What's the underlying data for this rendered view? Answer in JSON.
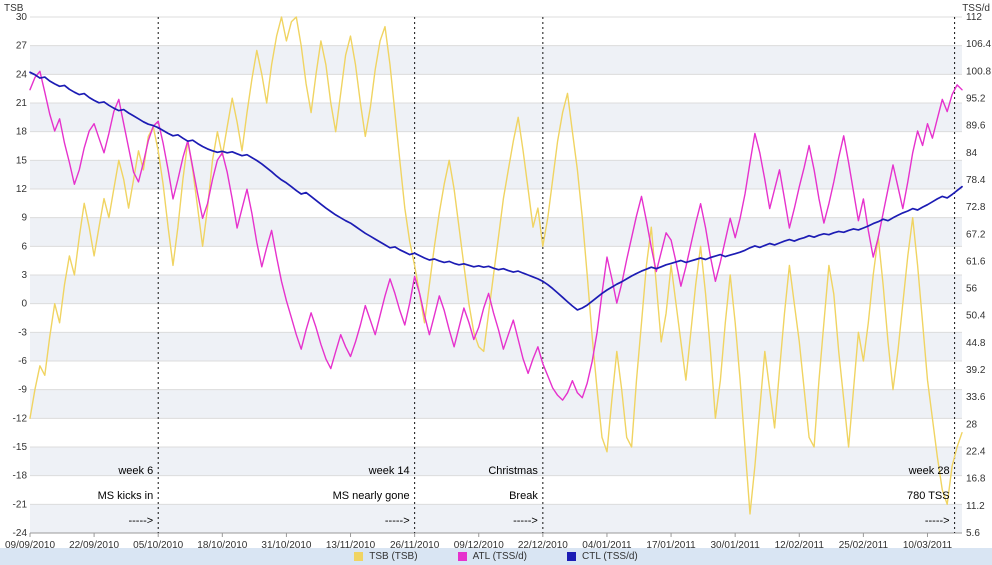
{
  "chart_data": {
    "type": "line",
    "title": "",
    "plot": {
      "band_color": "#eef1f6",
      "grid_color": "#dcdcdc",
      "axis_color": "#999999",
      "annotation_line_color": "#111111",
      "text_color": "#333333"
    },
    "left_axis": {
      "label": "TSB",
      "max": 30,
      "min": -24,
      "step": 3
    },
    "right_axis": {
      "label": "TSS/d",
      "max": 112,
      "min": 5.6,
      "step": 5.6
    },
    "x_axis": {
      "max_day": 189,
      "tick_days": [
        0,
        13,
        26,
        39,
        52,
        65,
        78,
        91,
        104,
        117,
        130,
        143,
        156,
        169,
        182
      ],
      "tick_labels": [
        "09/09/2010",
        "22/09/2010",
        "05/10/2010",
        "18/10/2010",
        "31/10/2010",
        "13/11/2010",
        "26/11/2010",
        "09/12/2010",
        "22/12/2010",
        "04/01/2011",
        "17/01/2011",
        "30/01/2011",
        "12/02/2011",
        "25/02/2011",
        "10/03/2011"
      ]
    },
    "annotations": [
      {
        "day": 26,
        "lines": [
          "week 6",
          "MS kicks in",
          "----->"
        ]
      },
      {
        "day": 78,
        "lines": [
          "week 14",
          "MS nearly gone",
          "----->"
        ]
      },
      {
        "day": 104,
        "lines": [
          "Christmas",
          "Break",
          "----->"
        ]
      },
      {
        "day": 187.5,
        "lines": [
          "week 28",
          "780 TSS",
          "----->"
        ]
      }
    ],
    "legend": {
      "background": "#d9e5f3"
    },
    "series": [
      {
        "id": "tsb",
        "name": "TSB (TSB)",
        "color": "#f0d462",
        "axis": "left",
        "width": 1.4,
        "values": [
          -12,
          -9,
          -6.5,
          -7.5,
          -3.5,
          0,
          -2,
          2,
          5,
          3,
          7,
          10.5,
          8,
          5,
          8,
          11,
          9,
          12,
          15,
          13,
          10,
          13,
          16,
          14,
          17.5,
          18.5,
          16,
          12.5,
          8,
          4,
          8,
          13,
          17,
          14,
          10,
          6,
          10,
          15,
          18,
          15.5,
          18.5,
          21.5,
          19,
          16,
          20,
          23.5,
          26.5,
          24,
          21,
          25,
          28,
          30,
          27.5,
          29.5,
          30,
          27,
          23,
          20,
          24,
          27.5,
          25,
          21,
          18,
          22,
          26,
          28,
          25,
          21,
          17.5,
          20.5,
          24.5,
          27.5,
          29,
          25,
          20,
          15,
          10,
          6.5,
          4,
          1,
          -2,
          2,
          6,
          9.5,
          12.5,
          15,
          12,
          8,
          4,
          0,
          -3,
          -4.5,
          -5,
          -1,
          3,
          7,
          11,
          14,
          17,
          19.5,
          16,
          12,
          8,
          10,
          6,
          9,
          13,
          17,
          20,
          22,
          18,
          14,
          9,
          3,
          -3.5,
          -9,
          -14,
          -15.5,
          -10,
          -5,
          -9,
          -14,
          -15,
          -8,
          -2,
          4,
          8,
          2,
          -4,
          -1,
          4,
          0,
          -4,
          -8,
          -3,
          2,
          6,
          1,
          -5,
          -12,
          -8,
          -2,
          3,
          -2,
          -8,
          -15,
          -22,
          -17,
          -11,
          -5,
          -9,
          -13,
          -7,
          -1,
          4,
          0,
          -4,
          -9,
          -14,
          -15,
          -8,
          -2,
          4,
          1,
          -5,
          -10,
          -15,
          -9,
          -3,
          -6,
          -2,
          3,
          7,
          2,
          -4,
          -9,
          -5,
          0,
          5,
          9,
          4,
          -2,
          -8,
          -12,
          -16,
          -19.5,
          -21,
          -17,
          -15,
          -13.5
        ]
      },
      {
        "id": "atl",
        "name": "ATL (TSS/d)",
        "color": "#e632cd",
        "axis": "right",
        "width": 1.4,
        "values": [
          97,
          99.5,
          100.8,
          96.5,
          92,
          88.5,
          91,
          86,
          82,
          77.5,
          80.5,
          85,
          88.5,
          90,
          87,
          84,
          88,
          92.5,
          95,
          90,
          85,
          80,
          78,
          82,
          86.5,
          89.5,
          90.5,
          86,
          80.5,
          74.5,
          78.5,
          83,
          86.5,
          81,
          75.5,
          70.5,
          73.5,
          78.5,
          82.5,
          84,
          80,
          74.5,
          68.5,
          72.5,
          76.5,
          71.5,
          65.5,
          60.5,
          64.5,
          68,
          62.5,
          57.5,
          53.5,
          50,
          46.5,
          43.5,
          47.5,
          51,
          48,
          44.5,
          41.5,
          39.5,
          43,
          46.5,
          44,
          42,
          45,
          48.5,
          52.5,
          49.5,
          46.5,
          50.5,
          54.5,
          58,
          55,
          51.5,
          48.5,
          53,
          58.5,
          55,
          50.5,
          46.5,
          50.5,
          54.5,
          51.5,
          47.5,
          44,
          48,
          52,
          49,
          45.5,
          48,
          52,
          55,
          51,
          47.5,
          43.5,
          46.5,
          49.5,
          45.5,
          41.5,
          38.5,
          41.5,
          44,
          40.5,
          38,
          35.5,
          34,
          33,
          34.5,
          37,
          34.5,
          33.5,
          36.5,
          41,
          47,
          55,
          62.5,
          58,
          53,
          57,
          62,
          66.5,
          71,
          75,
          70,
          64.5,
          59.5,
          63.5,
          67.5,
          66,
          61.5,
          56.5,
          60.5,
          65,
          69.5,
          73.5,
          68.5,
          62.5,
          57.5,
          61.5,
          66,
          70.5,
          66.5,
          70.5,
          75.5,
          82,
          88,
          84,
          78.5,
          72.5,
          76.5,
          80.5,
          74.5,
          68.5,
          72.5,
          77,
          81,
          85.5,
          80.5,
          74.5,
          69.5,
          73.5,
          78,
          83,
          87.5,
          82,
          76,
          70,
          74.5,
          68,
          62.5,
          66.5,
          71.5,
          76.5,
          81.5,
          77,
          72.5,
          78,
          84,
          88.5,
          85.5,
          90,
          87,
          91,
          95,
          92.5,
          96,
          98,
          97
        ]
      },
      {
        "id": "ctl",
        "name": "CTL (TSS/d)",
        "color": "#1c1cb4",
        "axis": "right",
        "width": 1.7,
        "values": [
          100.6,
          100.1,
          99.4,
          99.6,
          98.8,
          98.2,
          97.7,
          97.9,
          97.1,
          96.5,
          96.0,
          96.2,
          95.4,
          94.8,
          94.3,
          94.5,
          93.8,
          93.2,
          92.7,
          92.9,
          92.2,
          91.6,
          91.0,
          90.4,
          89.9,
          89.6,
          89.2,
          88.6,
          88.0,
          87.5,
          87.7,
          87.0,
          86.4,
          86.6,
          85.9,
          85.3,
          84.8,
          84.4,
          84.1,
          84.3,
          84.0,
          84.2,
          83.8,
          83.4,
          83.6,
          83.0,
          82.4,
          81.7,
          80.9,
          80.1,
          79.2,
          78.4,
          77.8,
          77.0,
          76.2,
          75.5,
          75.8,
          75.0,
          74.2,
          73.4,
          72.6,
          71.9,
          71.2,
          70.6,
          70.0,
          69.5,
          68.8,
          68.1,
          67.4,
          66.8,
          66.2,
          65.6,
          65.0,
          64.4,
          64.6,
          64.0,
          63.5,
          63.0,
          63.3,
          62.8,
          62.3,
          61.9,
          62.1,
          61.7,
          61.4,
          61.6,
          61.2,
          60.9,
          61.1,
          60.8,
          60.5,
          60.7,
          60.4,
          60.6,
          60.2,
          59.9,
          60.1,
          59.7,
          59.4,
          59.6,
          59.2,
          58.8,
          58.4,
          58.0,
          57.5,
          56.8,
          56.0,
          55.1,
          54.2,
          53.3,
          52.4,
          51.6,
          52.0,
          52.6,
          53.4,
          54.2,
          55.0,
          55.7,
          56.3,
          56.9,
          57.4,
          58.0,
          58.6,
          59.1,
          59.6,
          60.0,
          60.4,
          60.1,
          60.5,
          60.9,
          61.2,
          61.5,
          61.8,
          61.4,
          61.7,
          62.0,
          62.3,
          62.0,
          62.4,
          62.7,
          63.0,
          62.6,
          62.9,
          63.2,
          63.5,
          63.9,
          64.4,
          64.8,
          64.5,
          64.9,
          65.3,
          65.0,
          65.4,
          65.8,
          66.1,
          65.8,
          66.2,
          66.5,
          66.9,
          66.6,
          67.0,
          67.3,
          67.1,
          67.5,
          67.8,
          67.6,
          68.0,
          68.3,
          68.1,
          68.5,
          68.9,
          69.4,
          69.8,
          70.3,
          70.0,
          70.6,
          71.1,
          71.6,
          72.0,
          72.5,
          72.2,
          72.8,
          73.3,
          73.9,
          74.5,
          75.0,
          74.7,
          75.4,
          76.2,
          77.0
        ]
      }
    ]
  }
}
